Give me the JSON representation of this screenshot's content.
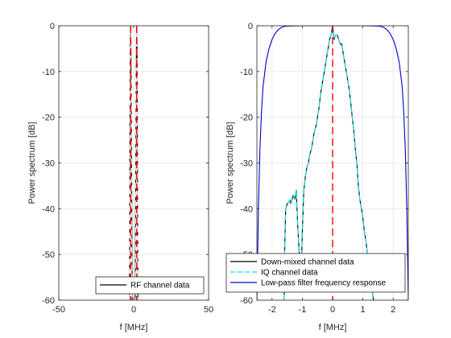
{
  "figure": {
    "background": "#ffffff",
    "axes_color": "#262626",
    "grid_color": "#e6e6e6"
  },
  "chart_data": [
    {
      "type": "line",
      "xlabel": "f [MHz]",
      "ylabel": "Power spectrum [dB]",
      "xlim": [
        -50,
        50
      ],
      "ylim": [
        -60,
        0
      ],
      "xticks": [
        -50,
        0,
        50
      ],
      "yticks": [
        0,
        -10,
        -20,
        -30,
        -40,
        -50,
        -60
      ],
      "grid": true,
      "legend": {
        "location": "bottom-right",
        "entries": [
          "RF channel data"
        ]
      },
      "series": [
        {
          "name": "RF channel data",
          "color": "#000000",
          "style": "solid",
          "x": [
            -2.8,
            -2.7,
            -2.6,
            -2.5,
            -2.4,
            -2.3,
            -2.2,
            -2.1,
            -2.0,
            -1.9,
            -1.8,
            -1.7,
            -1.6,
            -1.4,
            -1.2,
            -1.0,
            1.0,
            1.2,
            1.4,
            1.6,
            1.7,
            1.8,
            1.9,
            2.0,
            2.1,
            2.2,
            2.3,
            2.4,
            2.5,
            2.6,
            2.7,
            2.8
          ],
          "y": [
            -60,
            -50,
            -38,
            -22,
            -12,
            -6,
            -3,
            -1,
            0,
            -2,
            -5,
            -10,
            -18,
            -30,
            -45,
            -60,
            -60,
            -45,
            -30,
            -18,
            -10,
            -5,
            -2,
            0,
            -1,
            -3,
            -6,
            -12,
            -22,
            -38,
            -50,
            -60
          ]
        },
        {
          "name": "",
          "color": "#e8e8e8",
          "style": "dashed",
          "x": [
            -2.8,
            -2.5,
            -2.3,
            -2.1,
            -2.0,
            -1.9,
            -1.7,
            -1.5,
            -1.2,
            1.2,
            1.5,
            1.7,
            1.9,
            2.0,
            2.1,
            2.3,
            2.5,
            2.8
          ],
          "y": [
            -60,
            -24,
            -7,
            -2,
            -1,
            -3,
            -11,
            -25,
            -60,
            -60,
            -25,
            -11,
            -3,
            -1,
            -2,
            -7,
            -24,
            -60
          ]
        },
        {
          "name": "",
          "color": "#ff0000",
          "style": "dashed",
          "x": [
            -2.0,
            -2.0,
            null,
            2.0,
            2.0
          ],
          "y": [
            0,
            -60,
            null,
            0,
            -60
          ]
        }
      ]
    },
    {
      "type": "line",
      "xlabel": "f [MHz]",
      "ylabel": "Power spectrum [dB]",
      "xlim": [
        -2.5,
        2.5
      ],
      "ylim": [
        -60,
        0
      ],
      "xticks": [
        -2,
        -1,
        0,
        1,
        2
      ],
      "yticks": [
        0,
        -10,
        -20,
        -30,
        -40,
        -50,
        -60
      ],
      "grid": true,
      "legend": {
        "location": "bottom",
        "entries": [
          "Down-mixed channel data",
          "IQ channel data",
          "Low-pass filter frequency response"
        ]
      },
      "series": [
        {
          "name": "Down-mixed channel data",
          "color": "#000000",
          "style": "solid",
          "x": [
            -1.6,
            -1.58,
            -1.55,
            -1.5,
            -1.45,
            -1.4,
            -1.38,
            -1.3,
            -1.25,
            -1.2,
            -1.15,
            -1.1,
            -1.05,
            -1.0,
            -0.95,
            -0.9,
            -0.85,
            -0.8,
            -0.75,
            -0.7,
            -0.65,
            -0.6,
            -0.55,
            -0.5,
            -0.45,
            -0.4,
            -0.35,
            -0.3,
            -0.25,
            -0.2,
            -0.15,
            -0.1,
            -0.05,
            0.0,
            0.05,
            0.1,
            0.15,
            0.2,
            0.25,
            0.3,
            0.35,
            0.4,
            0.45,
            0.5,
            0.55,
            0.6,
            0.65,
            0.7,
            0.75,
            0.8,
            0.85,
            0.9,
            0.95,
            1.0,
            1.05,
            1.1,
            1.15,
            1.2,
            1.25,
            1.3,
            1.33,
            1.35
          ],
          "y": [
            -60,
            -48,
            -40,
            -39,
            -38.5,
            -38,
            -39,
            -37,
            -38,
            -36,
            -44,
            -50,
            -57,
            -45,
            -36,
            -33,
            -31,
            -30,
            -28,
            -27,
            -25,
            -23,
            -22,
            -20,
            -18,
            -15,
            -13,
            -11,
            -9,
            -7,
            -5,
            -3,
            -2,
            0,
            -3,
            -2,
            -2,
            -3,
            -4,
            -4,
            -6,
            -8,
            -10,
            -12,
            -14,
            -17,
            -20,
            -23,
            -27,
            -30,
            -35,
            -38,
            -40,
            -42,
            -45,
            -47,
            -50,
            -52,
            -55,
            -57,
            -59,
            -60
          ]
        },
        {
          "name": "IQ channel data",
          "color": "#00e5e5",
          "style": "dashed",
          "x": [
            -1.6,
            -1.58,
            -1.55,
            -1.5,
            -1.45,
            -1.4,
            -1.38,
            -1.3,
            -1.25,
            -1.2,
            -1.15,
            -1.1,
            -1.05,
            -1.0,
            -0.95,
            -0.9,
            -0.85,
            -0.8,
            -0.75,
            -0.7,
            -0.65,
            -0.6,
            -0.55,
            -0.5,
            -0.45,
            -0.4,
            -0.35,
            -0.3,
            -0.25,
            -0.2,
            -0.15,
            -0.1,
            -0.05,
            0.0,
            0.05,
            0.1,
            0.15,
            0.2,
            0.25,
            0.3,
            0.35,
            0.4,
            0.45,
            0.5,
            0.55,
            0.6,
            0.65,
            0.7,
            0.75,
            0.8,
            0.85,
            0.9,
            0.95,
            1.0,
            1.05,
            1.1,
            1.15,
            1.2,
            1.25,
            1.3,
            1.33,
            1.35
          ],
          "y": [
            -60,
            -48,
            -40,
            -39,
            -38.5,
            -38,
            -39,
            -37,
            -38,
            -36,
            -44,
            -50,
            -57,
            -45,
            -36,
            -33,
            -31,
            -30,
            -28,
            -27,
            -25,
            -23,
            -22,
            -20,
            -18,
            -15,
            -13,
            -11,
            -9,
            -7,
            -5,
            -3,
            -2,
            0,
            -3,
            -2,
            -2,
            -3,
            -4,
            -4,
            -6,
            -8,
            -10,
            -12,
            -14,
            -17,
            -20,
            -23,
            -27,
            -30,
            -35,
            -38,
            -40,
            -42,
            -45,
            -47,
            -50,
            -52,
            -55,
            -57,
            -59,
            -60
          ]
        },
        {
          "name": "Low-pass filter frequency response",
          "color": "#0000cc",
          "style": "solid",
          "x": [
            -2.5,
            -2.45,
            -2.4,
            -2.35,
            -2.3,
            -2.2,
            -2.1,
            -2.0,
            -1.9,
            -1.8,
            -1.7,
            -1.6,
            -1.5,
            -1.0,
            0.0,
            1.0,
            1.5,
            1.6,
            1.7,
            1.8,
            1.9,
            2.0,
            2.1,
            2.2,
            2.3,
            2.35,
            2.4,
            2.45,
            2.5
          ],
          "y": [
            -60,
            -40,
            -27,
            -19,
            -13.5,
            -8,
            -5,
            -3,
            -1.7,
            -0.9,
            -0.4,
            -0.15,
            -0.05,
            0,
            0,
            0,
            -0.05,
            -0.15,
            -0.4,
            -0.9,
            -1.7,
            -3,
            -5,
            -8,
            -13.5,
            -19,
            -27,
            -40,
            -60
          ]
        },
        {
          "name": "",
          "color": "#ff0000",
          "style": "dashed",
          "x": [
            0,
            0
          ],
          "y": [
            0,
            -60
          ]
        }
      ]
    }
  ]
}
